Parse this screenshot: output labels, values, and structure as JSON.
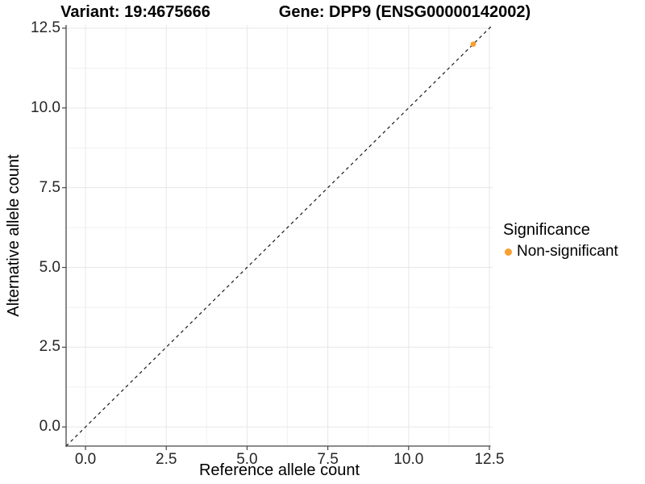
{
  "chart_data": {
    "type": "scatter",
    "title_left": "Variant: 19:4675666",
    "title_right": "Gene: DPP9 (ENSG00000142002)",
    "xlabel": "Reference allele count",
    "ylabel": "Alternative allele count",
    "xlim": [
      -0.6,
      12.6
    ],
    "ylim": [
      -0.6,
      12.6
    ],
    "x_ticks": [
      {
        "value": 0,
        "label": "0.0"
      },
      {
        "value": 2.5,
        "label": "2.5"
      },
      {
        "value": 5,
        "label": "5.0"
      },
      {
        "value": 7.5,
        "label": "7.5"
      },
      {
        "value": 10,
        "label": "10.0"
      },
      {
        "value": 12.5,
        "label": "12.5"
      }
    ],
    "y_ticks": [
      {
        "value": 0,
        "label": "0.0"
      },
      {
        "value": 2.5,
        "label": "2.5"
      },
      {
        "value": 5,
        "label": "5.0"
      },
      {
        "value": 7.5,
        "label": "7.5"
      },
      {
        "value": 10,
        "label": "10.0"
      },
      {
        "value": 12.5,
        "label": "12.5"
      }
    ],
    "minor_ticks": [
      1.25,
      3.75,
      6.25,
      8.75,
      11.25
    ],
    "grid": {
      "major_color": "#E7E7E7",
      "minor_color": "#F1F1F1",
      "background": "#FFFFFF",
      "grid_on": true
    },
    "axis": {
      "line_color": "#474747",
      "tick_color": "#474747",
      "tick_label_color": "#262626"
    },
    "identity_line": {
      "equation": "y = x",
      "style": "dashed",
      "color": "#1A1A1A"
    },
    "points": [
      {
        "x": 12,
        "y": 12,
        "series": "Non-significant",
        "color": "#F9A033"
      }
    ],
    "legend": {
      "title": "Significance",
      "position": "right",
      "items": [
        {
          "label": "Non-significant",
          "color": "#F9A033",
          "marker": "circle"
        }
      ]
    }
  }
}
